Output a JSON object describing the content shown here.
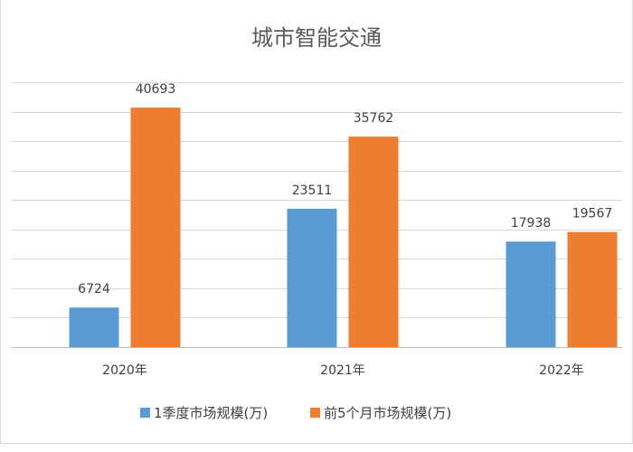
{
  "chart_data": {
    "type": "bar",
    "title": "城市智能交通",
    "xlabel": "",
    "ylabel": "",
    "categories": [
      "2020年",
      "2021年",
      "2022年"
    ],
    "series": [
      {
        "name": "1季度市场规模(万)",
        "values": [
          6724,
          23511,
          17938
        ],
        "color": "#5b9bd5"
      },
      {
        "name": "前5个月市场规模(万)",
        "values": [
          40693,
          35762,
          19567
        ],
        "color": "#ed7d31"
      }
    ],
    "ylim": [
      0,
      45000
    ],
    "y_tick_step": 5000,
    "grid": true,
    "legend": "bottom"
  }
}
